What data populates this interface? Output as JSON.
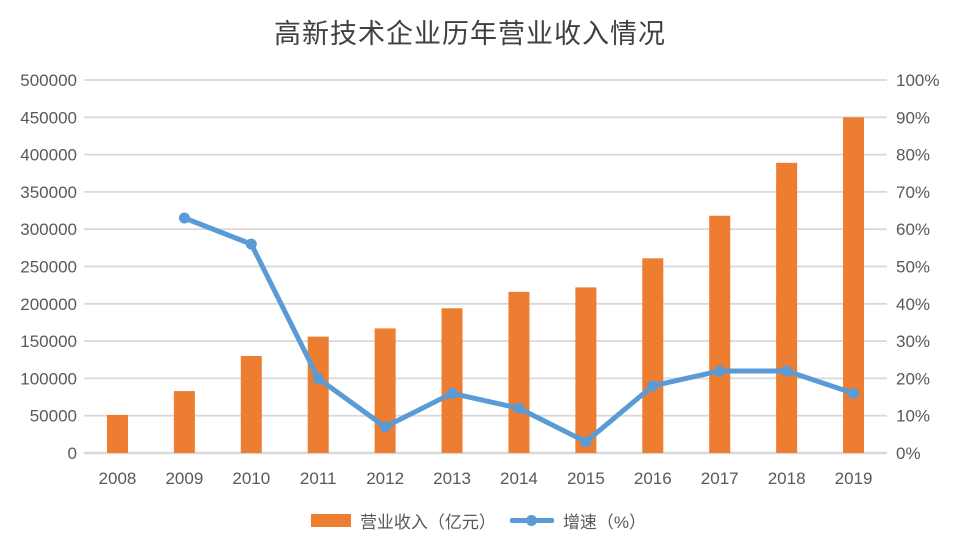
{
  "title": "高新技术企业历年营业收入情况",
  "colors": {
    "bar_orange": "#ED7D31",
    "line_blue": "#5B9BD5",
    "grid": "#D9D9D9",
    "axis_text": "#595959",
    "title_text": "#404040",
    "background": "#FFFFFF"
  },
  "chart_data": {
    "type": "combo-bar-line",
    "title": "高新技术企业历年营业收入情况",
    "categories": [
      "2008",
      "2009",
      "2010",
      "2011",
      "2012",
      "2013",
      "2014",
      "2015",
      "2016",
      "2017",
      "2018",
      "2019"
    ],
    "series": [
      {
        "name": "营业收入（亿元）",
        "type": "bar",
        "axis": "left",
        "color": "#ED7D31",
        "values": [
          51000,
          83000,
          130000,
          156000,
          167000,
          194000,
          216000,
          222000,
          261000,
          318000,
          389000,
          450000
        ]
      },
      {
        "name": "增速（%）",
        "type": "line",
        "axis": "right",
        "color": "#5B9BD5",
        "values": [
          null,
          63,
          56,
          20,
          7,
          16,
          12,
          3,
          18,
          22,
          22,
          16
        ]
      }
    ],
    "left_axis": {
      "min": 0,
      "max": 500000,
      "step": 50000,
      "tick_labels": [
        "0",
        "50000",
        "100000",
        "150000",
        "200000",
        "250000",
        "300000",
        "350000",
        "400000",
        "450000",
        "500000"
      ]
    },
    "right_axis": {
      "min": 0,
      "max": 100,
      "step": 10,
      "suffix": "%",
      "tick_labels": [
        "0%",
        "10%",
        "20%",
        "30%",
        "40%",
        "50%",
        "60%",
        "70%",
        "80%",
        "90%",
        "100%"
      ]
    },
    "grid": true,
    "legend_position": "bottom"
  }
}
